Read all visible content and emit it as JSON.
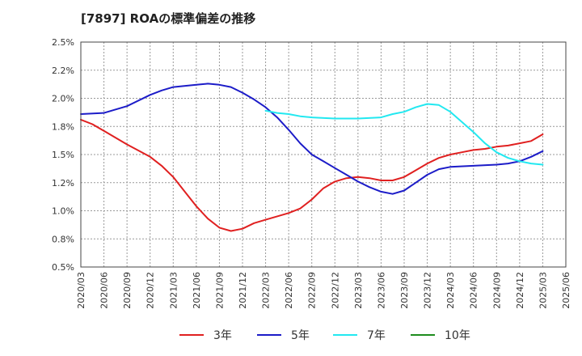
{
  "title": "[7897]  ROAの標準偏差の推移",
  "chart_data": {
    "type": "line",
    "title": "[7897]  ROAの標準偏差の推移",
    "xlabel": "",
    "ylabel": "",
    "ylim": [
      0.5,
      2.5
    ],
    "y_ticks": [
      0.5,
      0.75,
      1.0,
      1.25,
      1.5,
      1.75,
      2.0,
      2.25,
      2.5
    ],
    "y_tick_labels": [
      "0.5%",
      "0.8%",
      "1.0%",
      "1.2%",
      "1.5%",
      "1.8%",
      "2.0%",
      "2.2%",
      "2.5%"
    ],
    "x_tick_labels": [
      "2020/03",
      "2020/06",
      "2020/09",
      "2020/12",
      "2021/03",
      "2021/06",
      "2021/09",
      "2021/12",
      "2022/03",
      "2022/06",
      "2022/09",
      "2022/12",
      "2023/03",
      "2023/06",
      "2023/09",
      "2023/12",
      "2024/03",
      "2024/06",
      "2024/09",
      "2024/12",
      "2025/03",
      "2025/06"
    ],
    "grid": true,
    "legend_position": "bottom",
    "series": [
      {
        "name": "3年",
        "color": "#e02020",
        "points": [
          [
            0,
            1.81
          ],
          [
            0.5,
            1.77
          ],
          [
            1,
            1.71
          ],
          [
            2,
            1.59
          ],
          [
            3,
            1.48
          ],
          [
            3.5,
            1.4
          ],
          [
            4,
            1.3
          ],
          [
            4.5,
            1.17
          ],
          [
            5,
            1.04
          ],
          [
            5.5,
            0.93
          ],
          [
            6,
            0.85
          ],
          [
            6.5,
            0.82
          ],
          [
            7,
            0.84
          ],
          [
            7.5,
            0.89
          ],
          [
            8,
            0.92
          ],
          [
            8.5,
            0.95
          ],
          [
            9,
            0.98
          ],
          [
            9.5,
            1.02
          ],
          [
            10,
            1.1
          ],
          [
            10.5,
            1.2
          ],
          [
            11,
            1.26
          ],
          [
            11.5,
            1.29
          ],
          [
            12,
            1.3
          ],
          [
            12.5,
            1.29
          ],
          [
            13,
            1.27
          ],
          [
            13.5,
            1.27
          ],
          [
            14,
            1.3
          ],
          [
            14.5,
            1.36
          ],
          [
            15,
            1.42
          ],
          [
            15.5,
            1.47
          ],
          [
            16,
            1.5
          ],
          [
            16.5,
            1.52
          ],
          [
            17,
            1.54
          ],
          [
            17.5,
            1.55
          ],
          [
            18,
            1.57
          ],
          [
            18.5,
            1.58
          ],
          [
            19,
            1.6
          ],
          [
            19.5,
            1.62
          ],
          [
            20,
            1.68
          ]
        ]
      },
      {
        "name": "5年",
        "color": "#1c1cc8",
        "points": [
          [
            0,
            1.86
          ],
          [
            1,
            1.87
          ],
          [
            2,
            1.93
          ],
          [
            3,
            2.03
          ],
          [
            3.5,
            2.07
          ],
          [
            4,
            2.1
          ],
          [
            5,
            2.12
          ],
          [
            5.5,
            2.13
          ],
          [
            6,
            2.12
          ],
          [
            6.5,
            2.1
          ],
          [
            7,
            2.05
          ],
          [
            7.5,
            1.99
          ],
          [
            8,
            1.92
          ],
          [
            8.5,
            1.83
          ],
          [
            9,
            1.72
          ],
          [
            9.5,
            1.6
          ],
          [
            10,
            1.5
          ],
          [
            10.5,
            1.44
          ],
          [
            11,
            1.38
          ],
          [
            11.5,
            1.32
          ],
          [
            12,
            1.26
          ],
          [
            12.5,
            1.21
          ],
          [
            13,
            1.17
          ],
          [
            13.5,
            1.15
          ],
          [
            14,
            1.18
          ],
          [
            14.5,
            1.25
          ],
          [
            15,
            1.32
          ],
          [
            15.5,
            1.37
          ],
          [
            16,
            1.39
          ],
          [
            17,
            1.4
          ],
          [
            18,
            1.41
          ],
          [
            18.5,
            1.42
          ],
          [
            19,
            1.44
          ],
          [
            19.5,
            1.48
          ],
          [
            20,
            1.53
          ]
        ]
      },
      {
        "name": "7年",
        "color": "#22e8f0",
        "points": [
          [
            8,
            1.89
          ],
          [
            8.5,
            1.87
          ],
          [
            9,
            1.86
          ],
          [
            9.5,
            1.84
          ],
          [
            10,
            1.83
          ],
          [
            11,
            1.82
          ],
          [
            12,
            1.82
          ],
          [
            13,
            1.83
          ],
          [
            13.5,
            1.86
          ],
          [
            14,
            1.88
          ],
          [
            14.5,
            1.92
          ],
          [
            15,
            1.95
          ],
          [
            15.5,
            1.94
          ],
          [
            16,
            1.88
          ],
          [
            16.5,
            1.79
          ],
          [
            17,
            1.7
          ],
          [
            17.5,
            1.6
          ],
          [
            18,
            1.52
          ],
          [
            18.5,
            1.47
          ],
          [
            19,
            1.44
          ],
          [
            19.5,
            1.42
          ],
          [
            20,
            1.41
          ]
        ]
      },
      {
        "name": "10年",
        "color": "#1e8c1e",
        "points": []
      }
    ]
  }
}
